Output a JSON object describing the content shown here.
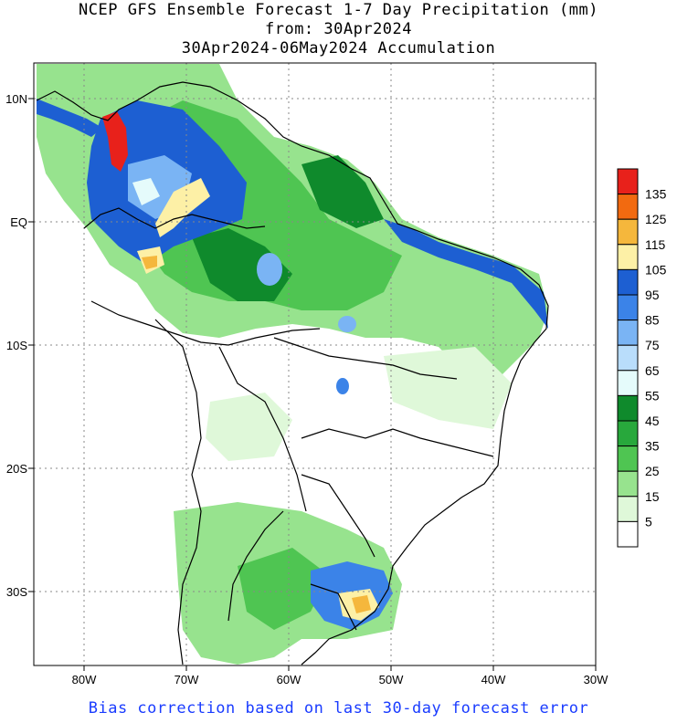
{
  "title": {
    "line1": "NCEP GFS Ensemble Forecast 1-7 Day Precipitation (mm)",
    "line2": "from: 30Apr2024",
    "line3": "30Apr2024-06May2024 Accumulation"
  },
  "axes": {
    "lat_labels": [
      "10N",
      "EQ",
      "10S",
      "20S",
      "30S"
    ],
    "lon_labels": [
      "80W",
      "70W",
      "60W",
      "50W",
      "40W",
      "30W"
    ]
  },
  "legend": {
    "labels": [
      "135",
      "125",
      "115",
      "105",
      "95",
      "85",
      "75",
      "65",
      "55",
      "45",
      "35",
      "25",
      "15",
      "5"
    ],
    "colors": [
      "#e8211b",
      "#f26a10",
      "#f5b73c",
      "#fdf0a6",
      "#1d5fd2",
      "#3b83e8",
      "#7ab4f4",
      "#b9ddfb",
      "#e5fbfb",
      "#0f8a2c",
      "#28a83c",
      "#4fc552",
      "#97e38e",
      "#dff8d9",
      "#ffffff"
    ]
  },
  "footer": "Bias correction based on last 30-day forecast error"
}
